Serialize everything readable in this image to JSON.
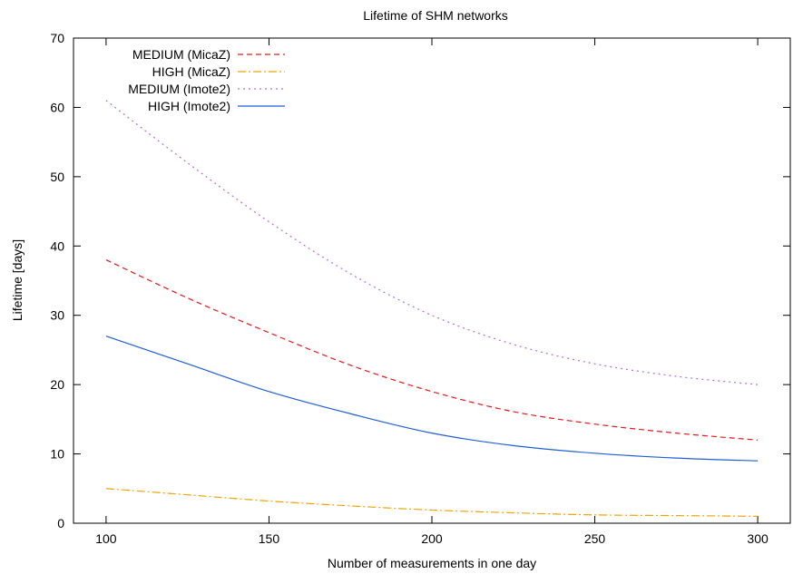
{
  "chart_data": {
    "type": "line",
    "title": "Lifetime of SHM networks",
    "xlabel": "Number of measurements in one day",
    "ylabel": "Lifetime [days]",
    "xlim": [
      90,
      310
    ],
    "ylim": [
      0,
      70
    ],
    "xticks": [
      100,
      150,
      200,
      250,
      300
    ],
    "yticks": [
      0,
      10,
      20,
      30,
      40,
      50,
      60,
      70
    ],
    "grid": false,
    "legend_position": "top-left",
    "x": [
      100,
      125,
      150,
      175,
      200,
      225,
      250,
      275,
      300
    ],
    "series": [
      {
        "name": "MEDIUM (MicaZ)",
        "color": "#e41a1c",
        "dash": "dashed",
        "values": [
          38,
          32.5,
          27.5,
          22.8,
          19,
          16.1,
          14.3,
          13,
          12
        ]
      },
      {
        "name": "HIGH (MicaZ)",
        "color": "#f0a30a",
        "dash": "dashdot",
        "values": [
          5,
          4.1,
          3.2,
          2.5,
          1.9,
          1.5,
          1.2,
          1.1,
          1
        ]
      },
      {
        "name": "MEDIUM (Imote2)",
        "color": "#b36ae2",
        "dash": "dotted",
        "values": [
          61,
          52,
          43.5,
          36,
          30,
          25.8,
          23,
          21.2,
          20
        ]
      },
      {
        "name": "HIGH (Imote2)",
        "color": "#1f5fd6",
        "dash": "solid",
        "values": [
          27,
          23,
          19,
          15.8,
          13,
          11.2,
          10.1,
          9.4,
          9
        ]
      }
    ]
  }
}
